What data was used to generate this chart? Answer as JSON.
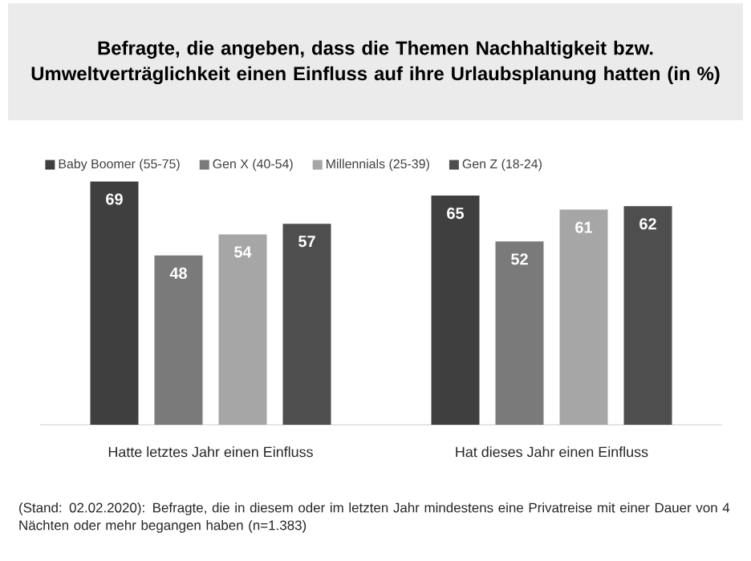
{
  "chart_data": {
    "type": "bar",
    "title": "Befragte, die angeben, dass die Themen Nachhaltigkeit bzw. Umweltverträglichkeit einen Einfluss auf ihre Urlaubsplanung hatten (in %)",
    "categories": [
      "Hatte letztes Jahr einen Einfluss",
      "Hat dieses Jahr einen Einfluss"
    ],
    "series": [
      {
        "name": "Baby Boomer (55-75)",
        "color": "#3f3f3f",
        "values": [
          69,
          65
        ]
      },
      {
        "name": "Gen X (40-54)",
        "color": "#7a7a7a",
        "values": [
          48,
          52
        ]
      },
      {
        "name": "Millennials (25-39)",
        "color": "#a6a6a6",
        "values": [
          54,
          61
        ]
      },
      {
        "name": "Gen Z (18-24)",
        "color": "#4e4e4e",
        "values": [
          57,
          62
        ]
      }
    ],
    "data_labels": true,
    "legend": "top left",
    "annotations": [
      "(Stand: 02.02.2020): Befragte, die in diesem oder im letzten Jahr mindestens eine Privatreise mit einer Dauer von 4 Nächten oder mehr begangen haben (n=1.383)"
    ]
  }
}
